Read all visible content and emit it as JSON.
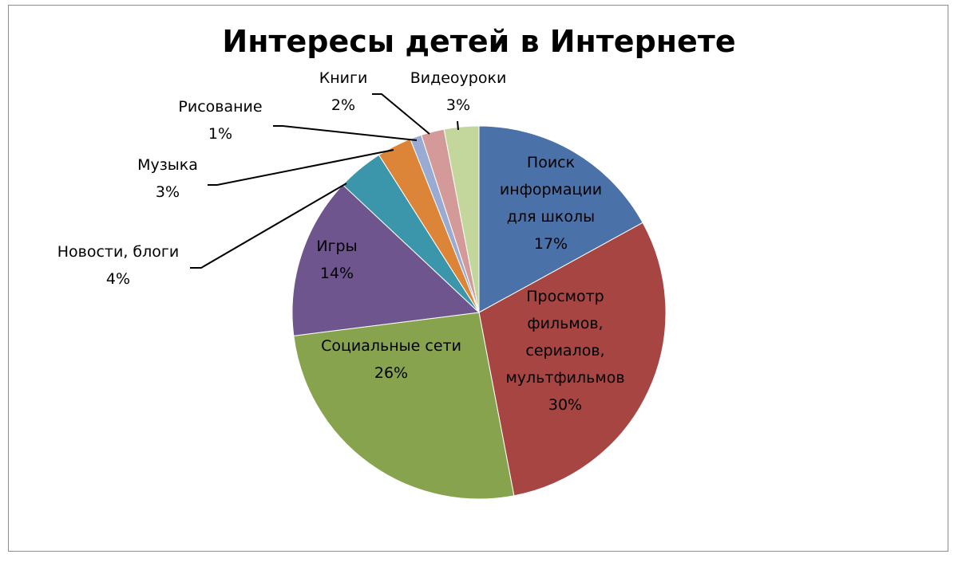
{
  "chart_data": {
    "type": "pie",
    "title": "Интересы детей в Интернете",
    "slices": [
      {
        "lines": [
          "Поиск",
          "информации",
          "для школы"
        ],
        "pct": "17%",
        "value": 17,
        "color": "#4a72a8"
      },
      {
        "lines": [
          "Просмотр",
          "фильмов,",
          "сериалов,",
          "мультфильмов"
        ],
        "pct": "30%",
        "value": 30,
        "color": "#a64541"
      },
      {
        "lines": [
          "Социальные сети"
        ],
        "pct": "26%",
        "value": 26,
        "color": "#87a34e"
      },
      {
        "lines": [
          "Игры"
        ],
        "pct": "14%",
        "value": 14,
        "color": "#6f558e"
      },
      {
        "lines": [
          "Новости, блоги"
        ],
        "pct": "4%",
        "value": 4,
        "color": "#3c96ab"
      },
      {
        "lines": [
          "Музыка"
        ],
        "pct": "3%",
        "value": 3,
        "color": "#dc8437"
      },
      {
        "lines": [
          "Рисование"
        ],
        "pct": "1%",
        "value": 1,
        "color": "#9aabd3"
      },
      {
        "lines": [
          "Книги"
        ],
        "pct": "2%",
        "value": 2,
        "color": "#d49a9a"
      },
      {
        "lines": [
          "Видеоуроки"
        ],
        "pct": "3%",
        "value": 3,
        "color": "#c3d69b"
      }
    ],
    "legend": "none"
  }
}
